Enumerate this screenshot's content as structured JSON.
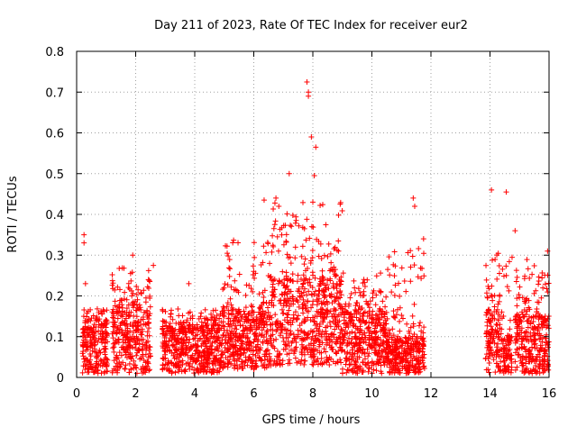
{
  "chart_data": {
    "type": "scatter",
    "title": "Day 211 of 2023, Rate Of TEC Index for receiver eur2",
    "xlabel": "GPS time / hours",
    "ylabel": "ROTI / TECUs",
    "xlim": [
      0,
      16
    ],
    "ylim": [
      0,
      0.8
    ],
    "xticks": [
      "0",
      "2",
      "4",
      "6",
      "8",
      "10",
      "12",
      "14",
      "16"
    ],
    "yticks": [
      "0",
      "0.1",
      "0.2",
      "0.3",
      "0.4",
      "0.5",
      "0.6",
      "0.7",
      "0.8"
    ],
    "grid": true,
    "marker": "+",
    "colors": {
      "points": "#ff0000",
      "grid": "#a0a0a0",
      "axis": "#000000"
    },
    "notable_points": [
      {
        "x": 0.25,
        "y": 0.35
      },
      {
        "x": 0.25,
        "y": 0.33
      },
      {
        "x": 0.3,
        "y": 0.23
      },
      {
        "x": 1.9,
        "y": 0.3
      },
      {
        "x": 2.6,
        "y": 0.275
      },
      {
        "x": 3.8,
        "y": 0.23
      },
      {
        "x": 6.35,
        "y": 0.435
      },
      {
        "x": 6.75,
        "y": 0.44
      },
      {
        "x": 7.2,
        "y": 0.5
      },
      {
        "x": 7.8,
        "y": 0.725
      },
      {
        "x": 7.85,
        "y": 0.7
      },
      {
        "x": 7.85,
        "y": 0.69
      },
      {
        "x": 7.95,
        "y": 0.59
      },
      {
        "x": 8.1,
        "y": 0.565
      },
      {
        "x": 8.05,
        "y": 0.495
      },
      {
        "x": 8.0,
        "y": 0.43
      },
      {
        "x": 11.4,
        "y": 0.44
      },
      {
        "x": 11.45,
        "y": 0.42
      },
      {
        "x": 11.75,
        "y": 0.34
      },
      {
        "x": 14.05,
        "y": 0.46
      },
      {
        "x": 14.55,
        "y": 0.455
      },
      {
        "x": 14.85,
        "y": 0.36
      },
      {
        "x": 15.95,
        "y": 0.31
      }
    ],
    "clusters": [
      {
        "x": [
          0.2,
          1.05
        ],
        "typical": [
          0.01,
          0.13
        ],
        "max": 0.17
      },
      {
        "x": [
          1.2,
          2.5
        ],
        "typical": [
          0.01,
          0.17
        ],
        "max": 0.27
      },
      {
        "x": [
          2.9,
          4.9
        ],
        "typical": [
          0.01,
          0.12
        ],
        "max": 0.17
      },
      {
        "x": [
          4.9,
          6.6
        ],
        "typical": [
          0.02,
          0.17
        ],
        "max": 0.34
      },
      {
        "x": [
          6.6,
          9.0
        ],
        "typical": [
          0.03,
          0.24
        ],
        "max": 0.43
      },
      {
        "x": [
          9.0,
          10.5
        ],
        "typical": [
          0.01,
          0.16
        ],
        "max": 0.26
      },
      {
        "x": [
          10.5,
          11.8
        ],
        "typical": [
          0.01,
          0.1
        ],
        "max": 0.32
      },
      {
        "x": [
          13.85,
          14.45
        ],
        "typical": [
          0.01,
          0.16
        ],
        "max": 0.31
      },
      {
        "x": [
          14.45,
          14.75
        ],
        "typical": [
          0.01,
          0.1
        ],
        "max": 0.3
      },
      {
        "x": [
          14.85,
          16.0
        ],
        "typical": [
          0.01,
          0.15
        ],
        "max": 0.29
      }
    ]
  }
}
